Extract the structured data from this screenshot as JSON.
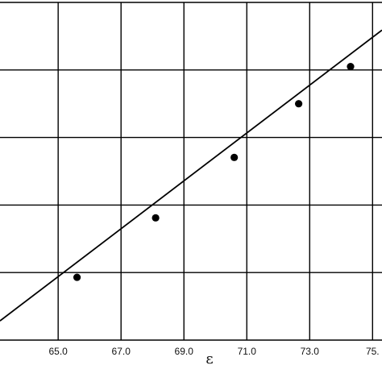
{
  "chart_data": {
    "type": "scatter",
    "title": "",
    "xlabel": "ε",
    "ylabel": "",
    "x_ticks": [
      "65.0",
      "67.0",
      "69.0",
      "71.0",
      "73.0",
      "75."
    ],
    "x_tick_values": [
      65,
      67,
      69,
      71,
      73,
      75
    ],
    "xlim": [
      63.15,
      75.3
    ],
    "ylim": [
      0,
      1
    ],
    "y_gridline_fractions": [
      0.2,
      0.4,
      0.6,
      0.8,
      1.0
    ],
    "grid": true,
    "legend": "none",
    "series": [
      {
        "kind": "points",
        "x": [
          65.6,
          68.1,
          70.6,
          72.65,
          74.3
        ],
        "y": [
          0.186,
          0.362,
          0.541,
          0.7,
          0.81
        ]
      },
      {
        "kind": "fit-line",
        "x": [
          63.15,
          75.3
        ],
        "y": [
          0.057,
          0.918
        ]
      }
    ],
    "colors": {
      "grid": "#000000",
      "marker": "#000000",
      "line": "#000000",
      "background": "#ffffff"
    }
  }
}
